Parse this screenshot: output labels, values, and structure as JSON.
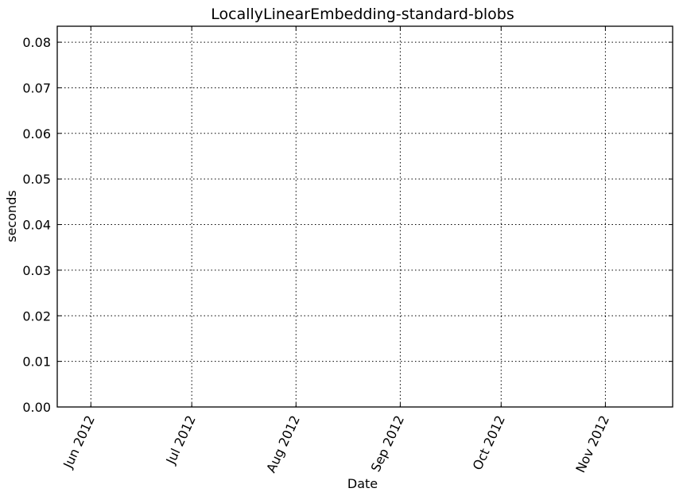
{
  "chart_data": {
    "type": "line",
    "title": "LocallyLinearEmbedding-standard-blobs",
    "xlabel": "Date",
    "ylabel": "seconds",
    "x_axis_type": "date",
    "xlim": [
      "2012-05-22",
      "2012-11-21"
    ],
    "ylim": [
      0,
      0.0835
    ],
    "x_ticks": [
      {
        "date": "2012-06-01",
        "label": "Jun 2012"
      },
      {
        "date": "2012-07-01",
        "label": "Jul 2012"
      },
      {
        "date": "2012-08-01",
        "label": "Aug 2012"
      },
      {
        "date": "2012-09-01",
        "label": "Sep 2012"
      },
      {
        "date": "2012-10-01",
        "label": "Oct 2012"
      },
      {
        "date": "2012-11-01",
        "label": "Nov 2012"
      }
    ],
    "y_ticks": [
      "0.00",
      "0.01",
      "0.02",
      "0.03",
      "0.04",
      "0.05",
      "0.06",
      "0.07",
      "0.08"
    ],
    "grid": true,
    "series": []
  }
}
